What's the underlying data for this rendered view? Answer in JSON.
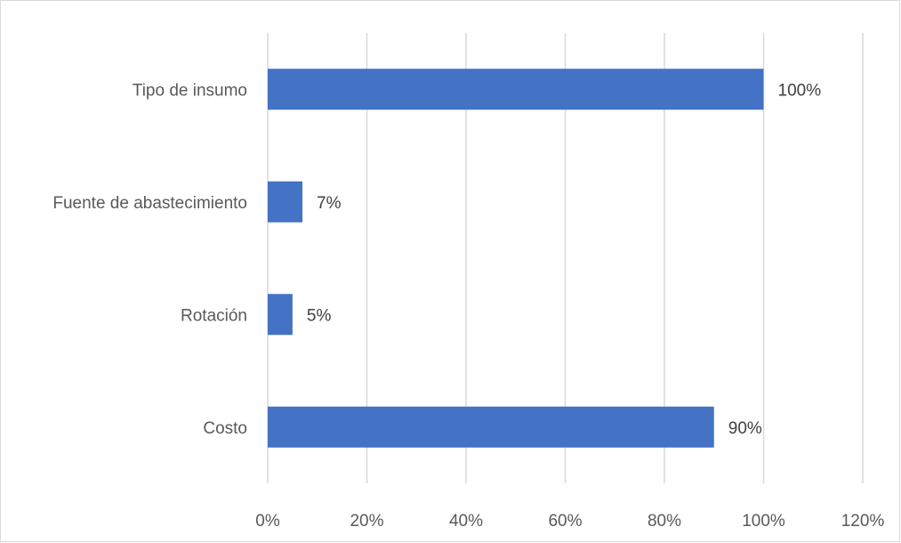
{
  "chart_data": {
    "type": "bar",
    "orientation": "horizontal",
    "categories": [
      "Tipo de insumo",
      "Fuente de abastecimiento",
      "Rotación",
      "Costo"
    ],
    "values": [
      100,
      7,
      5,
      90
    ],
    "value_labels": [
      "100%",
      "7%",
      "5%",
      "90%"
    ],
    "x_tick_labels": [
      "0%",
      "20%",
      "40%",
      "60%",
      "80%",
      "100%",
      "120%"
    ],
    "xlim": [
      0,
      120
    ],
    "unit": "%",
    "grid": "vertical",
    "legend": "none",
    "bar_color": "#4472C4",
    "gridline_color": "#d9d9d9"
  }
}
